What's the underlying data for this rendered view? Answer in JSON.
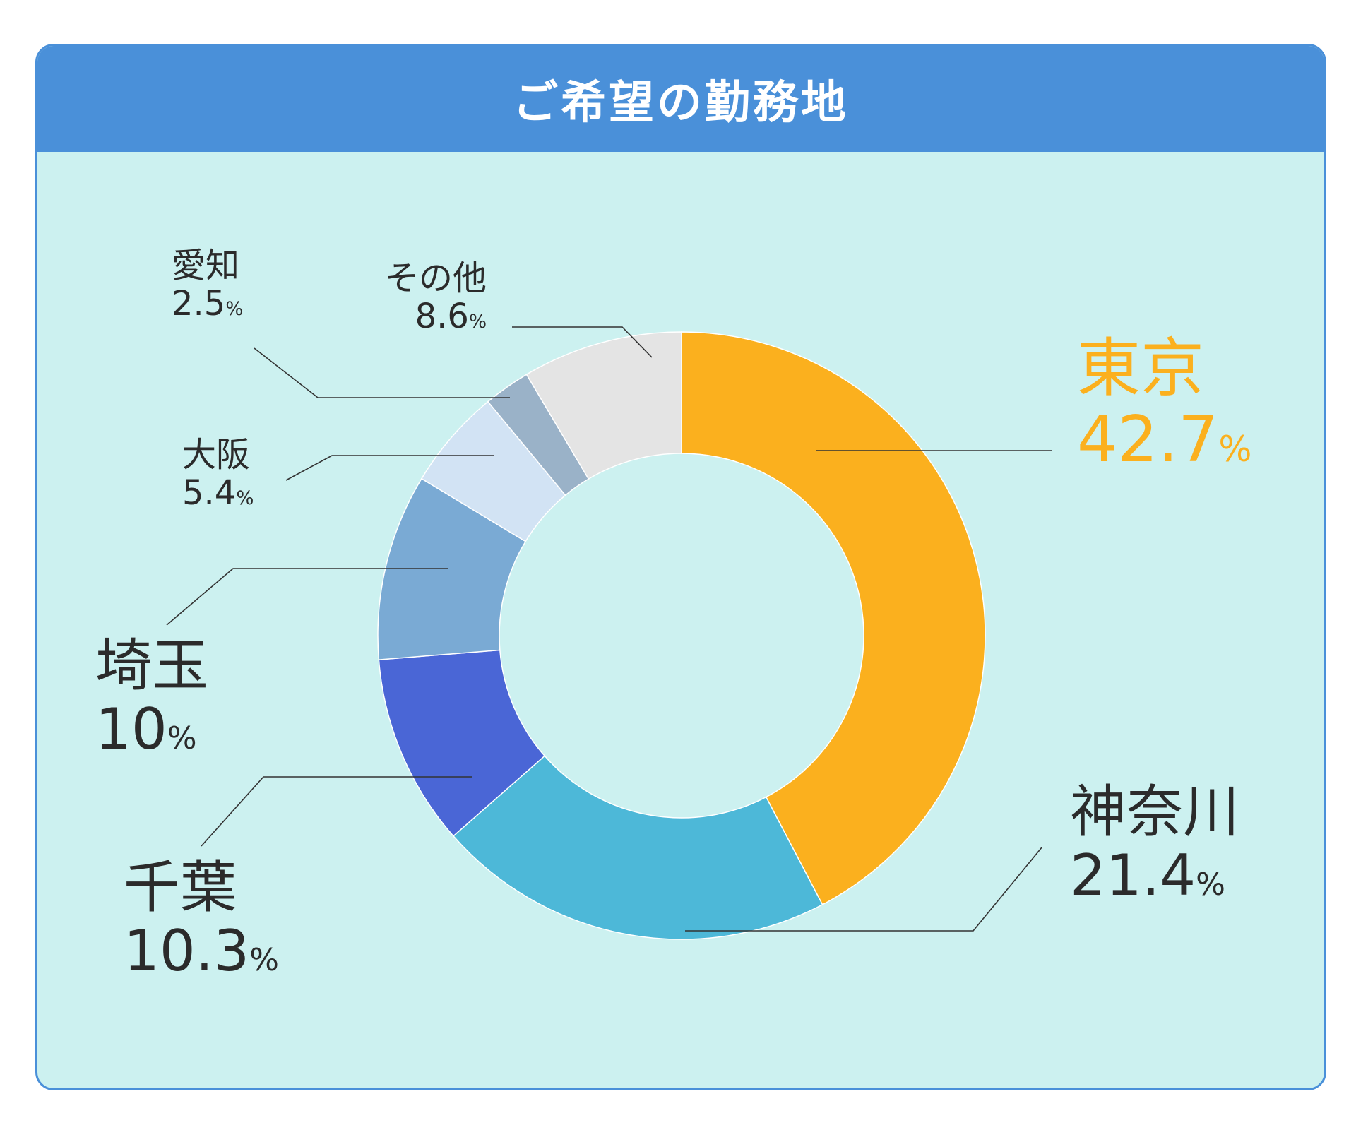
{
  "title": "ご希望の勤務地",
  "chart_data": {
    "type": "pie",
    "variant": "donut",
    "title": "ご希望の勤務地",
    "unit": "%",
    "slices": [
      {
        "label": "東京",
        "value": 42.7,
        "display": "42.7",
        "color": "#fbb01e",
        "text_color": "#fbb01e"
      },
      {
        "label": "神奈川",
        "value": 21.4,
        "display": "21.4",
        "color": "#4db8d8"
      },
      {
        "label": "千葉",
        "value": 10.3,
        "display": "10.3",
        "color": "#4a66d6"
      },
      {
        "label": "埼玉",
        "value": 10,
        "display": "10",
        "color": "#7aaad4"
      },
      {
        "label": "大阪",
        "value": 5.4,
        "display": "5.4",
        "color": "#d2e3f4"
      },
      {
        "label": "愛知",
        "value": 2.5,
        "display": "2.5",
        "color": "#9ab2c8"
      },
      {
        "label": "その他",
        "value": 8.6,
        "display": "8.6",
        "color": "#e4e4e4"
      }
    ]
  }
}
